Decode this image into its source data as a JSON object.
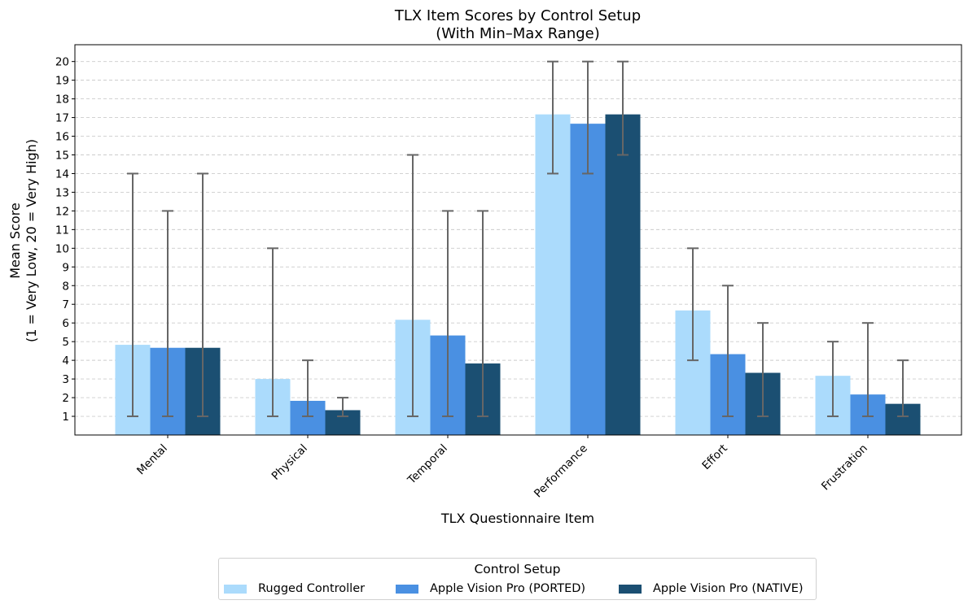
{
  "chart_data": {
    "type": "bar",
    "title": "TLX Item Scores by Control Setup",
    "subtitle": "(With Min–Max Range)",
    "xlabel": "TLX Questionnaire Item",
    "ylabel_line1": "Mean Score",
    "ylabel_line2": "(1 = Very Low, 20 = Very High)",
    "ylim": [
      0,
      20.9
    ],
    "yticks": [
      1,
      2,
      3,
      4,
      5,
      6,
      7,
      8,
      9,
      10,
      11,
      12,
      13,
      14,
      15,
      16,
      17,
      18,
      19,
      20
    ],
    "grid": "y-dashed",
    "categories": [
      "Mental",
      "Physical",
      "Temporal",
      "Performance",
      "Effort",
      "Frustration"
    ],
    "series": [
      {
        "name": "Rugged Controller",
        "color": "#abdbfc",
        "values": [
          4.83,
          3.0,
          6.17,
          17.17,
          6.67,
          3.17
        ],
        "min": [
          1,
          1,
          1,
          14,
          4,
          1
        ],
        "max": [
          14,
          10,
          15,
          20,
          10,
          5
        ]
      },
      {
        "name": "Apple Vision Pro (PORTED)",
        "color": "#4a90e2",
        "values": [
          4.67,
          1.83,
          5.33,
          16.67,
          4.33,
          2.17
        ],
        "min": [
          1,
          1,
          1,
          14,
          1,
          1
        ],
        "max": [
          12,
          4,
          12,
          20,
          8,
          6
        ]
      },
      {
        "name": "Apple Vision Pro (NATIVE)",
        "color": "#1b4f72",
        "values": [
          4.67,
          1.33,
          3.83,
          17.17,
          3.33,
          1.67
        ],
        "min": [
          1,
          1,
          1,
          15,
          1,
          1
        ],
        "max": [
          14,
          2,
          12,
          20,
          6,
          4
        ]
      }
    ],
    "errorbar_color": "#666666",
    "legend": {
      "title": "Control Setup",
      "placement": "bottom-center"
    }
  }
}
